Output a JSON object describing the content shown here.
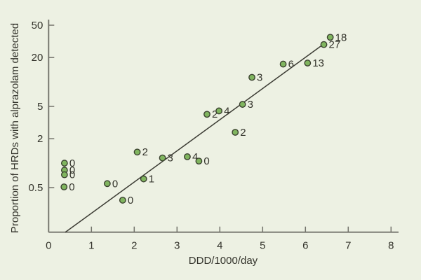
{
  "figure": {
    "background_color": "#edf1e3"
  },
  "chart_data": {
    "type": "scatter",
    "title": "",
    "xlabel": "DDD/1000/day",
    "ylabel": "Proportion of HRDs with alprazolam detected",
    "x_scale": "linear",
    "y_scale": "log",
    "xlim": [
      0,
      8.2
    ],
    "ylim": [
      0.14,
      60
    ],
    "x_ticks": [
      0,
      1,
      2,
      3,
      4,
      5,
      6,
      7,
      8
    ],
    "y_ticks": [
      0.5,
      2,
      5,
      20,
      50
    ],
    "grid": false,
    "legend": "none",
    "points": [
      {
        "x": 0.37,
        "y": 1.0,
        "label": "0"
      },
      {
        "x": 0.37,
        "y": 0.82,
        "label": "0"
      },
      {
        "x": 0.37,
        "y": 0.72,
        "label": "0"
      },
      {
        "x": 0.36,
        "y": 0.51,
        "label": "0"
      },
      {
        "x": 1.37,
        "y": 0.56,
        "label": "0"
      },
      {
        "x": 1.73,
        "y": 0.35,
        "label": "0"
      },
      {
        "x": 2.22,
        "y": 0.64,
        "label": "1"
      },
      {
        "x": 2.07,
        "y": 1.37,
        "label": "2"
      },
      {
        "x": 2.66,
        "y": 1.16,
        "label": "3"
      },
      {
        "x": 3.24,
        "y": 1.2,
        "label": "4"
      },
      {
        "x": 3.51,
        "y": 1.06,
        "label": "0"
      },
      {
        "x": 3.7,
        "y": 4.0,
        "label": "2"
      },
      {
        "x": 3.98,
        "y": 4.4,
        "label": "4"
      },
      {
        "x": 4.36,
        "y": 2.4,
        "label": "2"
      },
      {
        "x": 4.53,
        "y": 5.3,
        "label": "3"
      },
      {
        "x": 4.75,
        "y": 11.4,
        "label": "3"
      },
      {
        "x": 5.48,
        "y": 16.6,
        "label": "6"
      },
      {
        "x": 6.05,
        "y": 17.1,
        "label": "13"
      },
      {
        "x": 6.43,
        "y": 28.9,
        "label": "27"
      },
      {
        "x": 6.58,
        "y": 35.5,
        "label": "18"
      }
    ],
    "regression_line": {
      "x1": 0.39,
      "y1": 0.141,
      "x2": 6.45,
      "y2": 29.9
    },
    "colors": {
      "point_fill": "#80b55f",
      "point_stroke": "#3a412f",
      "regression_line": "#3c3c34",
      "axis": "#73736b",
      "text": "#33332b"
    }
  }
}
